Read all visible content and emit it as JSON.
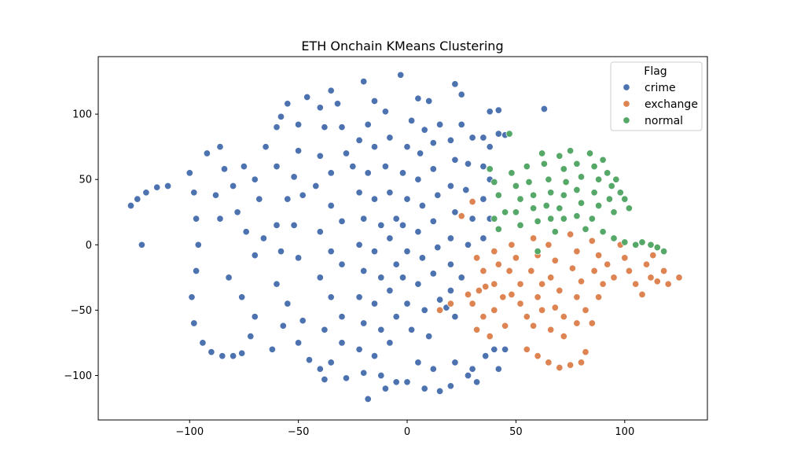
{
  "chart_data": {
    "type": "scatter",
    "title": "ETH Onchain KMeans Clustering",
    "xlabel": "",
    "ylabel": "",
    "xlim": [
      -142,
      138
    ],
    "ylim": [
      -134,
      144
    ],
    "x_ticks": [
      -100,
      -50,
      0,
      50,
      100
    ],
    "y_ticks": [
      -100,
      -50,
      0,
      50,
      100
    ],
    "x_tick_labels": [
      "−100",
      "−50",
      "0",
      "50",
      "100"
    ],
    "y_tick_labels": [
      "−100",
      "−50",
      "0",
      "50",
      "100"
    ],
    "grid": false,
    "legend": {
      "title": "Flag",
      "placement": "top-right",
      "entries": [
        "crime",
        "exchange",
        "normal"
      ]
    },
    "series": [
      {
        "name": "crime",
        "color": "#4c72b0",
        "points": [
          [
            -127,
            30
          ],
          [
            -124,
            35
          ],
          [
            -120,
            40
          ],
          [
            -115,
            44
          ],
          [
            -110,
            45
          ],
          [
            -122,
            0
          ],
          [
            -100,
            55
          ],
          [
            -98,
            40
          ],
          [
            -97,
            20
          ],
          [
            -96,
            0
          ],
          [
            -97,
            -20
          ],
          [
            -99,
            -40
          ],
          [
            -98,
            -60
          ],
          [
            -94,
            -75
          ],
          [
            -90,
            -82
          ],
          [
            -85,
            -85
          ],
          [
            -80,
            -85
          ],
          [
            -92,
            70
          ],
          [
            -86,
            75
          ],
          [
            -84,
            58
          ],
          [
            -88,
            38
          ],
          [
            -86,
            20
          ],
          [
            -80,
            45
          ],
          [
            -78,
            25
          ],
          [
            -74,
            10
          ],
          [
            -75,
            60
          ],
          [
            -70,
            50
          ],
          [
            -68,
            35
          ],
          [
            -66,
            5
          ],
          [
            -70,
            -8
          ],
          [
            -82,
            -25
          ],
          [
            -76,
            -40
          ],
          [
            -70,
            -55
          ],
          [
            -72,
            -70
          ],
          [
            -76,
            -83
          ],
          [
            -62,
            -80
          ],
          [
            -65,
            75
          ],
          [
            -60,
            90
          ],
          [
            -58,
            98
          ],
          [
            -55,
            108
          ],
          [
            -50,
            92
          ],
          [
            -50,
            72
          ],
          [
            -60,
            60
          ],
          [
            -52,
            52
          ],
          [
            -55,
            35
          ],
          [
            -48,
            38
          ],
          [
            -52,
            15
          ],
          [
            -60,
            15
          ],
          [
            -58,
            -5
          ],
          [
            -50,
            -10
          ],
          [
            -60,
            -30
          ],
          [
            -55,
            -45
          ],
          [
            -57,
            -62
          ],
          [
            -48,
            -58
          ],
          [
            -50,
            -75
          ],
          [
            -45,
            -88
          ],
          [
            -40,
            -95
          ],
          [
            -46,
            113
          ],
          [
            -40,
            105
          ],
          [
            -35,
            118
          ],
          [
            -32,
            108
          ],
          [
            -38,
            90
          ],
          [
            -30,
            90
          ],
          [
            -40,
            68
          ],
          [
            -35,
            55
          ],
          [
            -28,
            70
          ],
          [
            -42,
            45
          ],
          [
            -35,
            30
          ],
          [
            -30,
            18
          ],
          [
            -40,
            10
          ],
          [
            -35,
            -5
          ],
          [
            -30,
            -15
          ],
          [
            -40,
            -25
          ],
          [
            -35,
            -40
          ],
          [
            -30,
            -55
          ],
          [
            -38,
            -65
          ],
          [
            -30,
            -75
          ],
          [
            -35,
            -90
          ],
          [
            -28,
            -102
          ],
          [
            -38,
            -103
          ],
          [
            -20,
            125
          ],
          [
            -15,
            110
          ],
          [
            -10,
            102
          ],
          [
            -18,
            92
          ],
          [
            -22,
            80
          ],
          [
            -15,
            75
          ],
          [
            -8,
            82
          ],
          [
            -25,
            60
          ],
          [
            -18,
            55
          ],
          [
            -10,
            60
          ],
          [
            -22,
            40
          ],
          [
            -15,
            35
          ],
          [
            -8,
            40
          ],
          [
            -20,
            20
          ],
          [
            -12,
            15
          ],
          [
            -5,
            20
          ],
          [
            -22,
            0
          ],
          [
            -15,
            -5
          ],
          [
            -8,
            5
          ],
          [
            -20,
            -20
          ],
          [
            -12,
            -25
          ],
          [
            -5,
            -15
          ],
          [
            -22,
            -40
          ],
          [
            -15,
            -45
          ],
          [
            -8,
            -35
          ],
          [
            -20,
            -60
          ],
          [
            -12,
            -65
          ],
          [
            -5,
            -55
          ],
          [
            -22,
            -80
          ],
          [
            -15,
            -85
          ],
          [
            -8,
            -75
          ],
          [
            -20,
            -98
          ],
          [
            -12,
            -100
          ],
          [
            -5,
            -105
          ],
          [
            -18,
            -118
          ],
          [
            -10,
            -110
          ],
          [
            -3,
            130
          ],
          [
            5,
            112
          ],
          [
            10,
            110
          ],
          [
            2,
            95
          ],
          [
            8,
            88
          ],
          [
            15,
            92
          ],
          [
            0,
            75
          ],
          [
            6,
            70
          ],
          [
            12,
            78
          ],
          [
            -2,
            55
          ],
          [
            5,
            50
          ],
          [
            12,
            58
          ],
          [
            0,
            35
          ],
          [
            7,
            30
          ],
          [
            14,
            38
          ],
          [
            -2,
            15
          ],
          [
            5,
            10
          ],
          [
            12,
            18
          ],
          [
            0,
            -5
          ],
          [
            7,
            -10
          ],
          [
            14,
            -2
          ],
          [
            -2,
            -25
          ],
          [
            5,
            -30
          ],
          [
            12,
            -22
          ],
          [
            0,
            -45
          ],
          [
            8,
            -50
          ],
          [
            15,
            -42
          ],
          [
            2,
            -65
          ],
          [
            10,
            -70
          ],
          [
            5,
            -90
          ],
          [
            12,
            -95
          ],
          [
            0,
            -105
          ],
          [
            8,
            -110
          ],
          [
            15,
            -112
          ],
          [
            22,
            123
          ],
          [
            25,
            115
          ],
          [
            25,
            92
          ],
          [
            30,
            82
          ],
          [
            20,
            80
          ],
          [
            22,
            65
          ],
          [
            28,
            62
          ],
          [
            20,
            45
          ],
          [
            27,
            42
          ],
          [
            22,
            25
          ],
          [
            30,
            20
          ],
          [
            20,
            5
          ],
          [
            28,
            0
          ],
          [
            20,
            -15
          ],
          [
            25,
            -25
          ],
          [
            20,
            -35
          ],
          [
            22,
            -55
          ],
          [
            18,
            -48
          ],
          [
            22,
            -90
          ],
          [
            28,
            -100
          ],
          [
            20,
            -108
          ],
          [
            30,
            -95
          ],
          [
            35,
            82
          ],
          [
            38,
            75
          ],
          [
            42,
            85
          ],
          [
            45,
            84
          ],
          [
            35,
            60
          ],
          [
            38,
            50
          ],
          [
            35,
            35
          ],
          [
            38,
            20
          ],
          [
            35,
            5
          ],
          [
            40,
            -80
          ],
          [
            45,
            -80
          ],
          [
            36,
            -85
          ],
          [
            42,
            -95
          ],
          [
            32,
            -105
          ],
          [
            63,
            104
          ],
          [
            42,
            103
          ],
          [
            38,
            102
          ]
        ]
      },
      {
        "name": "exchange",
        "color": "#dd8452",
        "points": [
          [
            30,
            33
          ],
          [
            25,
            22
          ],
          [
            32,
            -10
          ],
          [
            35,
            -20
          ],
          [
            33,
            -35
          ],
          [
            30,
            -45
          ],
          [
            35,
            -55
          ],
          [
            32,
            -65
          ],
          [
            40,
            -5
          ],
          [
            42,
            -15
          ],
          [
            40,
            -30
          ],
          [
            44,
            -40
          ],
          [
            40,
            -50
          ],
          [
            45,
            -62
          ],
          [
            38,
            -70
          ],
          [
            48,
            0
          ],
          [
            50,
            -10
          ],
          [
            47,
            -20
          ],
          [
            52,
            -30
          ],
          [
            48,
            -38
          ],
          [
            52,
            -45
          ],
          [
            55,
            -55
          ],
          [
            58,
            5
          ],
          [
            60,
            -8
          ],
          [
            57,
            -20
          ],
          [
            62,
            -30
          ],
          [
            60,
            -40
          ],
          [
            62,
            -50
          ],
          [
            58,
            -62
          ],
          [
            65,
            0
          ],
          [
            68,
            -12
          ],
          [
            66,
            -25
          ],
          [
            70,
            -35
          ],
          [
            68,
            -48
          ],
          [
            72,
            -55
          ],
          [
            66,
            -65
          ],
          [
            75,
            8
          ],
          [
            78,
            -5
          ],
          [
            76,
            -18
          ],
          [
            80,
            -28
          ],
          [
            78,
            -40
          ],
          [
            82,
            -50
          ],
          [
            78,
            -60
          ],
          [
            85,
            3
          ],
          [
            88,
            -8
          ],
          [
            86,
            -20
          ],
          [
            90,
            -30
          ],
          [
            88,
            -40
          ],
          [
            92,
            -15
          ],
          [
            95,
            -25
          ],
          [
            98,
            0
          ],
          [
            100,
            -10
          ],
          [
            102,
            -20
          ],
          [
            105,
            -30
          ],
          [
            108,
            -38
          ],
          [
            110,
            -15
          ],
          [
            112,
            -25
          ],
          [
            115,
            -28
          ],
          [
            118,
            -20
          ],
          [
            120,
            -30
          ],
          [
            125,
            -25
          ],
          [
            113,
            -8
          ],
          [
            55,
            -80
          ],
          [
            60,
            -85
          ],
          [
            65,
            -90
          ],
          [
            70,
            -94
          ],
          [
            75,
            -92
          ],
          [
            80,
            -90
          ],
          [
            82,
            -82
          ],
          [
            72,
            -70
          ],
          [
            85,
            -60
          ],
          [
            20,
            -45
          ],
          [
            15,
            -50
          ],
          [
            28,
            -38
          ],
          [
            36,
            -32
          ]
        ]
      },
      {
        "name": "normal",
        "color": "#55a868",
        "points": [
          [
            38,
            58
          ],
          [
            40,
            48
          ],
          [
            42,
            38
          ],
          [
            45,
            25
          ],
          [
            40,
            20
          ],
          [
            42,
            12
          ],
          [
            47,
            85
          ],
          [
            48,
            55
          ],
          [
            50,
            45
          ],
          [
            52,
            35
          ],
          [
            50,
            25
          ],
          [
            52,
            15
          ],
          [
            55,
            60
          ],
          [
            56,
            48
          ],
          [
            58,
            38
          ],
          [
            58,
            28
          ],
          [
            60,
            18
          ],
          [
            62,
            70
          ],
          [
            63,
            62
          ],
          [
            65,
            50
          ],
          [
            66,
            40
          ],
          [
            64,
            30
          ],
          [
            66,
            20
          ],
          [
            70,
            68
          ],
          [
            72,
            58
          ],
          [
            73,
            48
          ],
          [
            72,
            38
          ],
          [
            70,
            28
          ],
          [
            72,
            20
          ],
          [
            75,
            72
          ],
          [
            78,
            62
          ],
          [
            80,
            52
          ],
          [
            78,
            42
          ],
          [
            80,
            32
          ],
          [
            78,
            22
          ],
          [
            82,
            12
          ],
          [
            84,
            70
          ],
          [
            86,
            60
          ],
          [
            88,
            50
          ],
          [
            86,
            40
          ],
          [
            88,
            30
          ],
          [
            85,
            20
          ],
          [
            90,
            65
          ],
          [
            92,
            55
          ],
          [
            94,
            45
          ],
          [
            93,
            35
          ],
          [
            95,
            25
          ],
          [
            96,
            50
          ],
          [
            98,
            40
          ],
          [
            100,
            35
          ],
          [
            102,
            28
          ],
          [
            90,
            10
          ],
          [
            95,
            5
          ],
          [
            100,
            2
          ],
          [
            108,
            2
          ],
          [
            112,
            0
          ],
          [
            115,
            -2
          ],
          [
            118,
            -5
          ],
          [
            105,
            0
          ],
          [
            60,
            -5
          ],
          [
            68,
            10
          ]
        ]
      }
    ]
  }
}
